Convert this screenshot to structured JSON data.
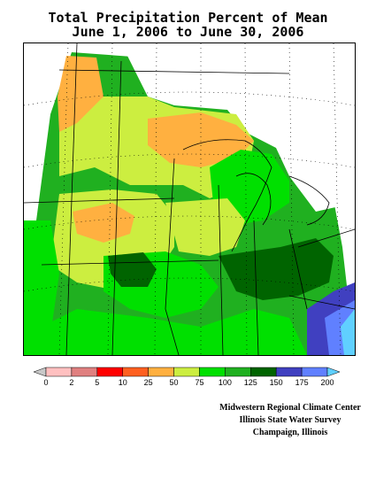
{
  "title": {
    "line1": "Total Precipitation Percent of Mean",
    "line2": "June 1, 2006 to June 30, 2006"
  },
  "legend": {
    "bins": [
      {
        "label": "0",
        "color": "#c8c8c8"
      },
      {
        "label": "2",
        "color": "#ffc0c0"
      },
      {
        "label": "5",
        "color": "#e08080"
      },
      {
        "label": "10",
        "color": "#ff0000"
      },
      {
        "label": "25",
        "color": "#ff6020"
      },
      {
        "label": "50",
        "color": "#ffb040"
      },
      {
        "label": "75",
        "color": "#ccee40"
      },
      {
        "label": "100",
        "color": "#00e000"
      },
      {
        "label": "125",
        "color": "#20b020"
      },
      {
        "label": "150",
        "color": "#006400"
      },
      {
        "label": "175",
        "color": "#4040c0"
      },
      {
        "label": "200",
        "color": "#6080ff"
      },
      {
        "label": "",
        "color": "#60d0ff"
      }
    ]
  },
  "credits": {
    "line1": "Midwestern Regional Climate Center",
    "line2": "Illinois State Water Survey",
    "line3": "Champaign, Illinois"
  },
  "colors": {
    "orange": "#ffb040",
    "yellow_green": "#ccee40",
    "green": "#00e000",
    "medium_green": "#20b020",
    "dark_green": "#006400",
    "blue": "#4040c0",
    "light_blue": "#6080ff",
    "cyan": "#60d0ff"
  }
}
